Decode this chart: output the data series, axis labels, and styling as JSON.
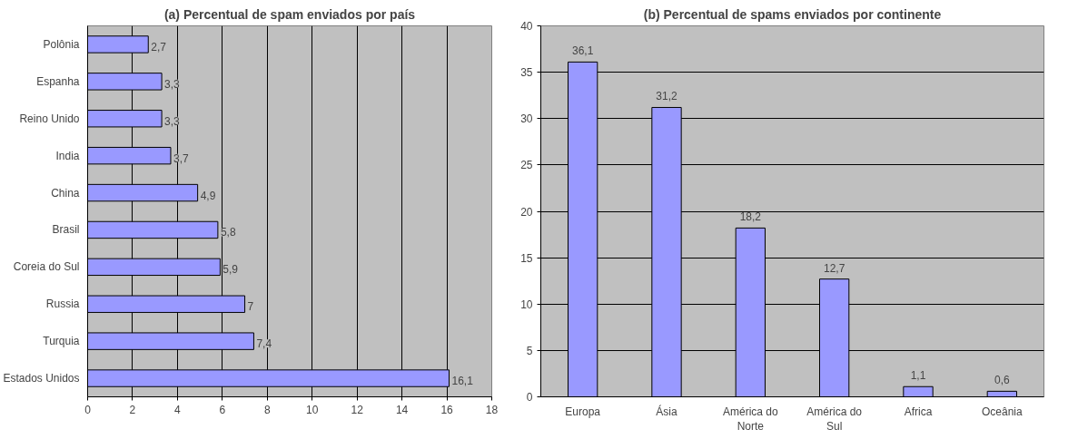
{
  "chart_data": [
    {
      "type": "bar",
      "orientation": "horizontal",
      "title": "(a) Percentual de spam enviados por país",
      "categories": [
        "Polônia",
        "Espanha",
        "Reino Unido",
        "India",
        "China",
        "Brasil",
        "Coreia do Sul",
        "Russia",
        "Turquia",
        "Estados Unidos"
      ],
      "values": [
        2.7,
        3.3,
        3.3,
        3.7,
        4.9,
        5.8,
        5.9,
        7,
        7.4,
        16.1
      ],
      "value_labels": [
        "2,7",
        "3,3",
        "3,3",
        "3,7",
        "4,9",
        "5,8",
        "5,9",
        "7",
        "7,4",
        "16,1"
      ],
      "color": "#9999ff",
      "xlim": [
        0,
        18
      ],
      "xticks": [
        0,
        2,
        4,
        6,
        8,
        10,
        12,
        14,
        16,
        18
      ],
      "grid": "x"
    },
    {
      "type": "bar",
      "title": "(b) Percentual de spams enviados por continente",
      "categories": [
        "Europa",
        "Ásia",
        "América do Norte",
        "América do Sul",
        "Africa",
        "Oceânia"
      ],
      "values": [
        36.1,
        31.2,
        18.2,
        12.7,
        1.1,
        0.6
      ],
      "value_labels": [
        "36,1",
        "31,2",
        "18,2",
        "12,7",
        "1,1",
        "0,6"
      ],
      "color": "#9999ff",
      "ylim": [
        0,
        40
      ],
      "yticks": [
        0,
        5,
        10,
        15,
        20,
        25,
        30,
        35,
        40
      ],
      "grid": "y"
    }
  ]
}
